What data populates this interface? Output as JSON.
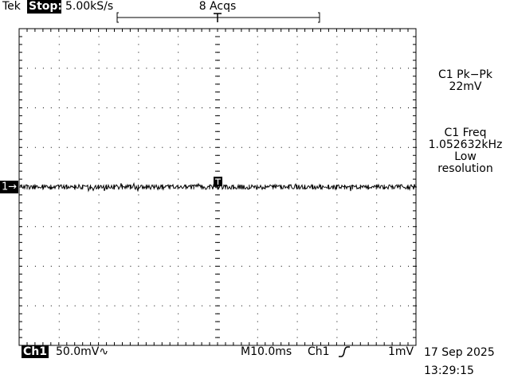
{
  "header": {
    "brand": "Tek",
    "status": "Stop:",
    "sample_rate": "5.00kS/s",
    "acquisitions": "8 Acqs"
  },
  "measurements": [
    {
      "label": "C1 Pk−Pk",
      "value": "22mV"
    },
    {
      "label": "C1 Freq",
      "value": "1.052632kHz",
      "note": [
        "Low",
        "resolution"
      ]
    }
  ],
  "channel_marker": "1→",
  "footer": {
    "channel": "Ch1",
    "scale": "50.0mV∿",
    "timebase": "M10.0ms",
    "trigger_source": "Ch1",
    "trigger_level": "1mV",
    "date": "17 Sep 2025",
    "time": "13:29:15"
  }
}
